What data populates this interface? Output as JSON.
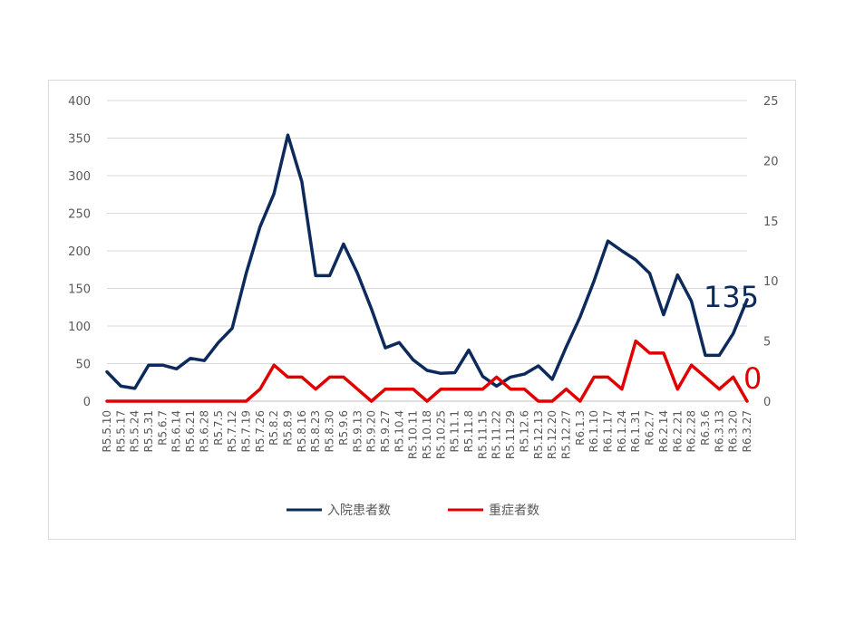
{
  "chart_data": {
    "type": "line",
    "categories": [
      "R5.5.10",
      "R5.5.17",
      "R5.5.24",
      "R5.5.31",
      "R5.6.7",
      "R5.6.14",
      "R5.6.21",
      "R5.6.28",
      "R5.7.5",
      "R5.7.12",
      "R5.7.19",
      "R5.7.26",
      "R5.8.2",
      "R5.8.9",
      "R5.8.16",
      "R5.8.23",
      "R5.8.30",
      "R5.9.6",
      "R5.9.13",
      "R5.9.20",
      "R5.9.27",
      "R5.10.4",
      "R5.10.11",
      "R5.10.18",
      "R5.10.25",
      "R5.11.1",
      "R5.11.8",
      "R5.11.15",
      "R5.11.22",
      "R5.11.29",
      "R5.12.6",
      "R5.12.13",
      "R5.12.20",
      "R5.12.27",
      "R6.1.3",
      "R6.1.10",
      "R6.1.17",
      "R6.1.24",
      "R6.1.31",
      "R6.2.7",
      "R6.2.14",
      "R6.2.21",
      "R6.2.28",
      "R6.3.6",
      "R6.3.13",
      "R6.3.20",
      "R6.3.27"
    ],
    "series": [
      {
        "name": "入院患者数",
        "color": "#0d2a5c",
        "axis": "left",
        "values": [
          39,
          20,
          17,
          48,
          48,
          43,
          57,
          54,
          78,
          97,
          170,
          232,
          276,
          354,
          292,
          167,
          167,
          209,
          170,
          123,
          71,
          78,
          55,
          41,
          37,
          38,
          68,
          33,
          20,
          32,
          36,
          47,
          29,
          72,
          112,
          160,
          213,
          200,
          188,
          170,
          115,
          168,
          133,
          61,
          61,
          90,
          135
        ]
      },
      {
        "name": "重症者数",
        "color": "#e00000",
        "axis": "right",
        "values": [
          0,
          0,
          0,
          0,
          0,
          0,
          0,
          0,
          0,
          0,
          0,
          1,
          3,
          2,
          2,
          1,
          2,
          2,
          1,
          0,
          1,
          1,
          1,
          0,
          1,
          1,
          1,
          1,
          2,
          1,
          1,
          0,
          0,
          1,
          0,
          2,
          2,
          1,
          5,
          4,
          4,
          1,
          3,
          2,
          1,
          2,
          0
        ]
      }
    ],
    "ylim_left": [
      0,
      400
    ],
    "ylim_right": [
      0,
      25
    ],
    "yticks_left": [
      "0",
      "50",
      "100",
      "150",
      "200",
      "250",
      "300",
      "350",
      "400"
    ],
    "yticks_right": [
      "0",
      "5",
      "10",
      "15",
      "20",
      "25"
    ],
    "annotations": {
      "last_inpatient": "135",
      "last_severe": "0"
    },
    "grid": true,
    "legend_position": "bottom"
  }
}
